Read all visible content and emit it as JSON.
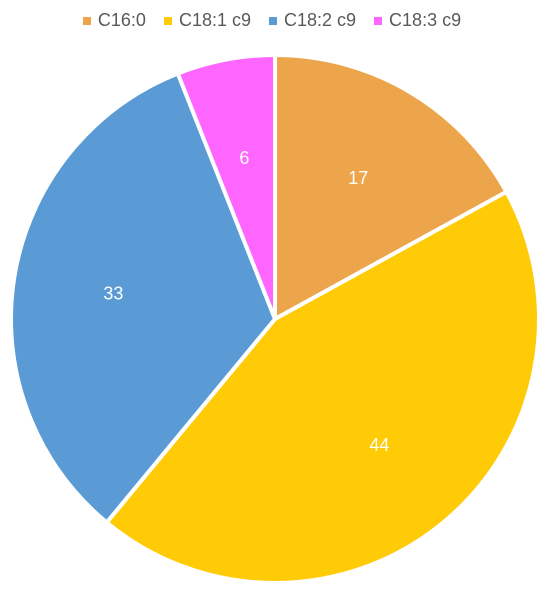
{
  "chart_data": {
    "type": "pie",
    "categories": [
      "C16:0",
      "C18:1 c9",
      "C18:2 c9",
      "C18:3 c9"
    ],
    "values": [
      17,
      44,
      33,
      6
    ],
    "colors": [
      "#EDA54C",
      "#FFCA06",
      "#5B9BD5",
      "#FF66FF"
    ],
    "legend_position": "top",
    "data_label_color": "#ffffff"
  }
}
